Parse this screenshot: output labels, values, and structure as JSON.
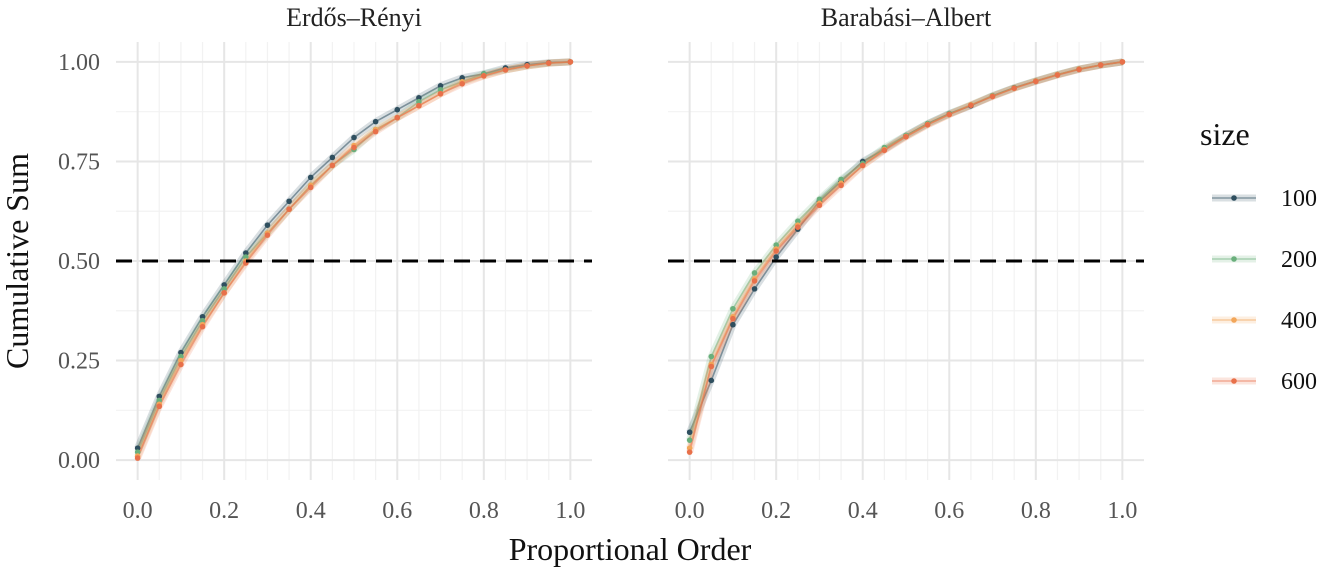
{
  "chart_data": {
    "type": "line",
    "xlabel": "Proportional Order",
    "ylabel": "Cumulative Sum",
    "xlim": [
      0,
      1
    ],
    "ylim": [
      0,
      1
    ],
    "x_ticks": [
      0,
      0.2,
      0.4,
      0.6,
      0.8,
      1
    ],
    "x_tick_labels": [
      "0.0",
      "0.2",
      "0.4",
      "0.6",
      "0.8",
      "1.0"
    ],
    "y_ticks": [
      0,
      0.25,
      0.5,
      0.75,
      1
    ],
    "y_tick_labels": [
      "0.00",
      "0.25",
      "0.50",
      "0.75",
      "1.00"
    ],
    "reference_line": {
      "y": 0.5,
      "style": "dashed",
      "color": "#000000"
    },
    "grid": true,
    "legend": {
      "title": "size",
      "position": "right",
      "entries": [
        {
          "label": "100",
          "color": "#2f4f5f"
        },
        {
          "label": "200",
          "color": "#6aaf7c"
        },
        {
          "label": "400",
          "color": "#f2a65a"
        },
        {
          "label": "600",
          "color": "#e8704a"
        }
      ]
    },
    "x": [
      0,
      0.05,
      0.1,
      0.15,
      0.2,
      0.25,
      0.3,
      0.35,
      0.4,
      0.45,
      0.5,
      0.55,
      0.6,
      0.65,
      0.7,
      0.75,
      0.8,
      0.85,
      0.9,
      0.95,
      1
    ],
    "facets": [
      {
        "title": "Erdős–Rényi",
        "series": [
          {
            "name": "100",
            "values": [
              0.03,
              0.16,
              0.27,
              0.36,
              0.44,
              0.52,
              0.59,
              0.65,
              0.71,
              0.76,
              0.81,
              0.85,
              0.88,
              0.91,
              0.94,
              0.96,
              0.97,
              0.985,
              0.993,
              0.998,
              1.0
            ]
          },
          {
            "name": "200",
            "values": [
              0.02,
              0.15,
              0.26,
              0.35,
              0.43,
              0.51,
              0.57,
              0.63,
              0.69,
              0.74,
              0.78,
              0.83,
              0.86,
              0.9,
              0.93,
              0.95,
              0.97,
              0.98,
              0.99,
              0.997,
              1.0
            ]
          },
          {
            "name": "400",
            "values": [
              0.01,
              0.14,
              0.25,
              0.34,
              0.42,
              0.5,
              0.57,
              0.63,
              0.69,
              0.74,
              0.79,
              0.83,
              0.86,
              0.89,
              0.92,
              0.95,
              0.965,
              0.98,
              0.99,
              0.997,
              1.0
            ]
          },
          {
            "name": "600",
            "values": [
              0.005,
              0.135,
              0.24,
              0.335,
              0.42,
              0.495,
              0.565,
              0.63,
              0.685,
              0.74,
              0.785,
              0.825,
              0.86,
              0.89,
              0.92,
              0.945,
              0.965,
              0.98,
              0.99,
              0.997,
              1.0
            ]
          }
        ]
      },
      {
        "title": "Barabási–Albert",
        "series": [
          {
            "name": "100",
            "values": [
              0.07,
              0.2,
              0.34,
              0.43,
              0.51,
              0.58,
              0.65,
              0.7,
              0.75,
              0.78,
              0.815,
              0.845,
              0.87,
              0.89,
              0.915,
              0.935,
              0.952,
              0.968,
              0.982,
              0.992,
              1.0
            ]
          },
          {
            "name": "200",
            "values": [
              0.05,
              0.26,
              0.38,
              0.47,
              0.54,
              0.6,
              0.655,
              0.705,
              0.745,
              0.785,
              0.815,
              0.845,
              0.87,
              0.892,
              0.915,
              0.935,
              0.952,
              0.968,
              0.982,
              0.992,
              1.0
            ]
          },
          {
            "name": "400",
            "values": [
              0.03,
              0.24,
              0.36,
              0.455,
              0.53,
              0.59,
              0.645,
              0.695,
              0.74,
              0.78,
              0.813,
              0.843,
              0.868,
              0.892,
              0.914,
              0.934,
              0.952,
              0.968,
              0.982,
              0.992,
              1.0
            ]
          },
          {
            "name": "600",
            "values": [
              0.02,
              0.235,
              0.355,
              0.45,
              0.525,
              0.585,
              0.64,
              0.69,
              0.74,
              0.778,
              0.812,
              0.842,
              0.868,
              0.891,
              0.913,
              0.934,
              0.951,
              0.967,
              0.981,
              0.992,
              1.0
            ]
          }
        ]
      }
    ]
  }
}
